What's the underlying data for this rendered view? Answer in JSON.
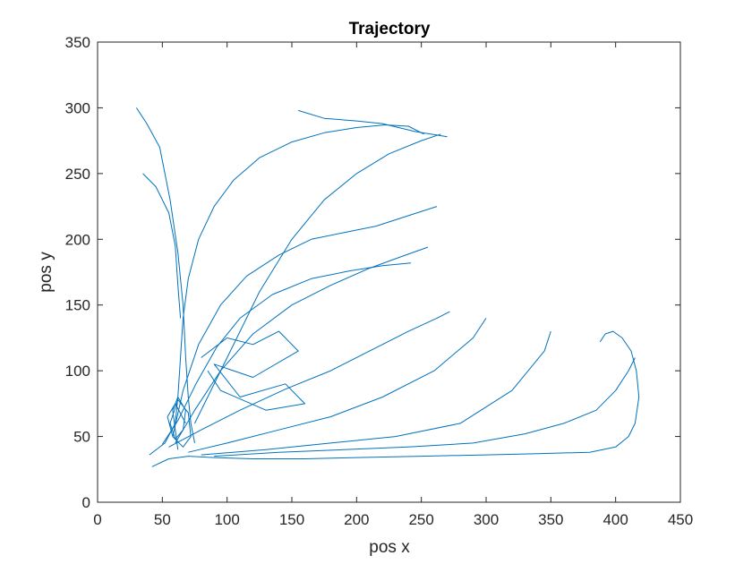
{
  "chart_data": {
    "type": "line",
    "title": "Trajectory",
    "xlabel": "pos x",
    "ylabel": "pos y",
    "xlim": [
      0,
      450
    ],
    "ylim": [
      0,
      350
    ],
    "xticks": [
      0,
      50,
      100,
      150,
      200,
      250,
      300,
      350,
      400,
      450
    ],
    "yticks": [
      0,
      50,
      100,
      150,
      200,
      250,
      300,
      350
    ],
    "grid": false,
    "legend": "none",
    "line_color": "#0072BD",
    "series": [
      {
        "x": [
          42,
          55,
          70,
          90,
          120,
          160,
          200,
          250,
          300,
          340,
          380,
          400,
          410,
          415,
          418,
          416,
          412,
          405,
          398,
          392,
          388
        ],
        "y": [
          27,
          33,
          35,
          34,
          33,
          33,
          34,
          35,
          36,
          37,
          38,
          42,
          50,
          60,
          80,
          100,
          115,
          125,
          130,
          128,
          122
        ]
      },
      {
        "x": [
          40,
          52,
          60,
          62,
          64,
          66,
          70,
          78,
          90,
          105,
          125,
          150,
          175,
          200,
          222,
          240,
          252
        ],
        "y": [
          36,
          45,
          60,
          80,
          110,
          140,
          170,
          200,
          225,
          245,
          262,
          274,
          281,
          285,
          287,
          286,
          280
        ]
      },
      {
        "x": [
          30,
          38,
          48,
          56,
          62,
          66,
          68,
          70,
          72,
          75
        ],
        "y": [
          300,
          288,
          270,
          230,
          190,
          150,
          110,
          80,
          60,
          45
        ]
      },
      {
        "x": [
          58,
          66,
          78,
          95,
          115,
          140,
          165,
          190,
          215,
          240,
          262
        ],
        "y": [
          50,
          85,
          120,
          150,
          172,
          188,
          200,
          205,
          210,
          218,
          225
        ]
      },
      {
        "x": [
          60,
          75,
          95,
          120,
          150,
          180,
          210,
          235,
          255
        ],
        "y": [
          45,
          70,
          100,
          128,
          150,
          165,
          178,
          187,
          194
        ]
      },
      {
        "x": [
          55,
          80,
          110,
          145,
          180,
          210,
          240,
          262,
          272
        ],
        "y": [
          42,
          55,
          70,
          86,
          100,
          115,
          130,
          140,
          145
        ]
      },
      {
        "x": [
          70,
          100,
          140,
          180,
          220,
          260,
          290,
          300
        ],
        "y": [
          38,
          45,
          55,
          65,
          80,
          100,
          125,
          140
        ]
      },
      {
        "x": [
          80,
          130,
          180,
          230,
          280,
          320,
          345,
          350
        ],
        "y": [
          36,
          40,
          45,
          50,
          60,
          85,
          115,
          130
        ]
      },
      {
        "x": [
          62,
          60,
          58,
          62,
          68,
          66,
          60,
          56,
          62,
          70,
          72,
          66,
          58,
          54,
          60,
          68
        ],
        "y": [
          40,
          55,
          70,
          80,
          70,
          55,
          48,
          60,
          78,
          68,
          50,
          42,
          50,
          65,
          75,
          60
        ]
      },
      {
        "x": [
          80,
          100,
          120,
          140,
          155,
          120,
          90,
          110,
          145,
          160,
          130,
          95,
          85
        ],
        "y": [
          110,
          125,
          120,
          130,
          115,
          95,
          105,
          80,
          90,
          75,
          70,
          85,
          100
        ]
      },
      {
        "x": [
          155,
          175,
          200,
          220,
          245,
          270
        ],
        "y": [
          298,
          292,
          290,
          288,
          282,
          278
        ]
      },
      {
        "x": [
          50,
          62,
          76,
          92,
          110,
          135,
          165,
          195,
          220,
          242
        ],
        "y": [
          44,
          62,
          90,
          118,
          140,
          158,
          170,
          176,
          180,
          182
        ]
      },
      {
        "x": [
          90,
          140,
          190,
          240,
          290,
          330,
          360,
          385,
          400,
          410,
          415
        ],
        "y": [
          35,
          38,
          40,
          42,
          45,
          52,
          60,
          70,
          85,
          100,
          110
        ]
      },
      {
        "x": [
          35,
          45,
          55,
          60,
          62,
          64
        ],
        "y": [
          250,
          240,
          220,
          195,
          165,
          140
        ]
      },
      {
        "x": [
          75,
          100,
          125,
          150,
          175,
          200,
          225,
          250,
          265
        ],
        "y": [
          60,
          110,
          160,
          200,
          230,
          250,
          265,
          275,
          280
        ]
      }
    ]
  }
}
